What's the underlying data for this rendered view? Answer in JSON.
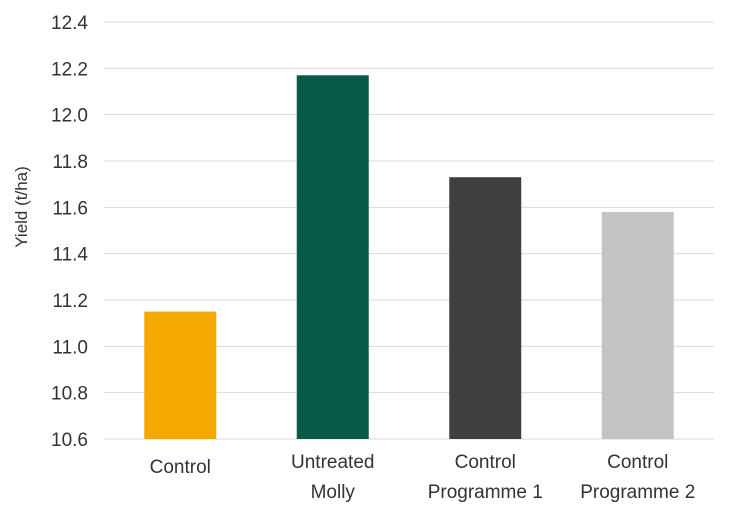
{
  "chart_data": {
    "type": "bar",
    "title": "",
    "xlabel": "",
    "ylabel": "Yield (t/ha)",
    "ylim": [
      10.6,
      12.4
    ],
    "yticks": [
      10.6,
      10.8,
      11.0,
      11.2,
      11.4,
      11.6,
      11.8,
      12.0,
      12.2,
      12.4
    ],
    "grid": true,
    "categories": [
      [
        "Control"
      ],
      [
        "Untreated",
        "Molly"
      ],
      [
        "Control",
        "Programme 1"
      ],
      [
        "Control",
        "Programme 2"
      ]
    ],
    "values": [
      11.15,
      12.17,
      11.73,
      11.58
    ],
    "colors": [
      "#f5a800",
      "#065a47",
      "#404040",
      "#c2c3c5"
    ]
  }
}
